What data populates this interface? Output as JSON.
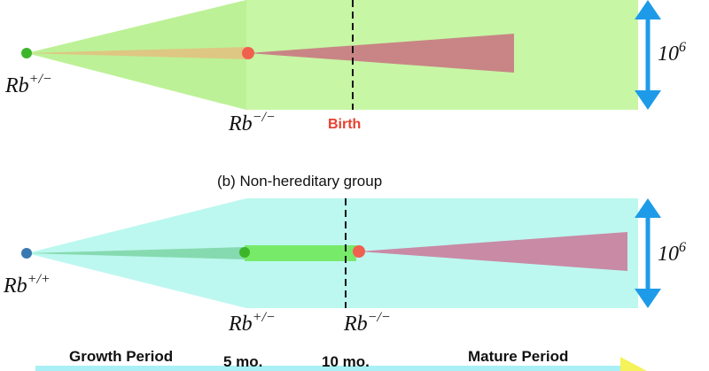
{
  "panel_a": {
    "label_origin": "Rb",
    "label_origin_sup": "+/−",
    "label_mid": "Rb",
    "label_mid_sup": "−/−",
    "birth_label": "Birth",
    "scale_label": "10",
    "scale_sup": "6"
  },
  "panel_b": {
    "title": "(b) Non-hereditary group",
    "label_origin": "Rb",
    "label_origin_sup": "+/+",
    "label_mid": "Rb",
    "label_mid_sup": "+/−",
    "label_mid2": "Rb",
    "label_mid2_sup": "−/−",
    "scale_label": "10",
    "scale_sup": "6"
  },
  "timeline": {
    "growth_label": "Growth Period",
    "tick1_label": "5 mo.",
    "tick2_label": "10 mo.",
    "mature_label": "Mature Period"
  },
  "colors": {
    "green_region": "#c4f5a0",
    "cyan_region": "#b8f8ee",
    "tumor": "#c98585",
    "tumor_b": "#c98aa6",
    "wedge_green": "#5ed84a",
    "dot_green": "#3cb52b",
    "dot_red": "#f0604f",
    "dot_blue": "#3a78b0",
    "birth_text": "#e8402e",
    "arrow_blue": "#1e9be8",
    "timeline_bar": "#a8f0f5",
    "timeline_arrow": "#f5f25a"
  }
}
